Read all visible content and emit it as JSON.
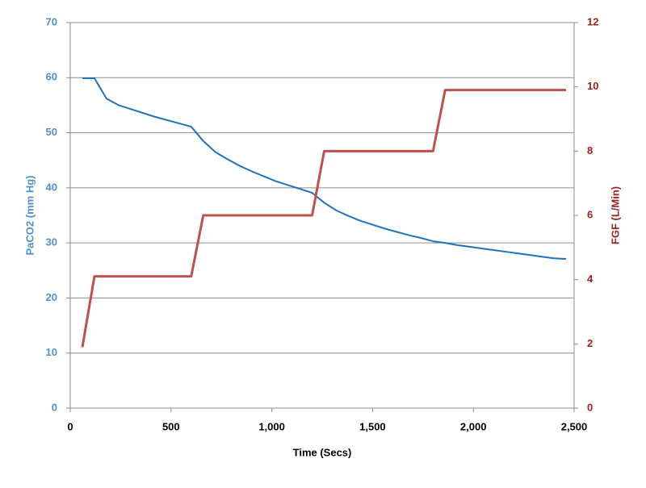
{
  "chart_data": {
    "type": "line",
    "x_label": "Time (Secs)",
    "y_label": "PaCO2 (mm Hg)",
    "y2_label": "FGF (L/Min)",
    "x": [
      60,
      120,
      180,
      240,
      300,
      360,
      420,
      480,
      540,
      600,
      660,
      720,
      780,
      840,
      900,
      960,
      1020,
      1080,
      1140,
      1200,
      1260,
      1320,
      1380,
      1440,
      1500,
      1560,
      1620,
      1680,
      1740,
      1800,
      1860,
      1920,
      1980,
      2040,
      2100,
      2160,
      2220,
      2280,
      2340,
      2400,
      2460
    ],
    "series": [
      {
        "name": "PaCO2",
        "color": "#1f72bd",
        "values": [
          59.9,
          59.9,
          56.2,
          55.0,
          54.3,
          53.6,
          52.9,
          52.3,
          51.7,
          51.1,
          48.5,
          46.5,
          45.2,
          44.0,
          43.0,
          42.1,
          41.2,
          40.5,
          39.8,
          39.1,
          37.3,
          35.9,
          34.9,
          34.0,
          33.3,
          32.6,
          32.0,
          31.4,
          30.9,
          30.3,
          30.0,
          29.6,
          29.3,
          29.0,
          28.7,
          28.4,
          28.1,
          27.8,
          27.5,
          27.2,
          27.1
        ]
      },
      {
        "name": "FGF",
        "color": "#c0504d",
        "axis": "y2",
        "values": [
          1.9,
          4.1,
          4.1,
          4.1,
          4.1,
          4.1,
          4.1,
          4.1,
          4.1,
          4.1,
          6.0,
          6.0,
          6.0,
          6.0,
          6.0,
          6.0,
          6.0,
          6.0,
          6.0,
          6.0,
          8.0,
          8.0,
          8.0,
          8.0,
          8.0,
          8.0,
          8.0,
          8.0,
          8.0,
          8.0,
          9.9,
          9.9,
          9.9,
          9.9,
          9.9,
          9.9,
          9.9,
          9.9,
          9.9,
          9.9,
          9.9
        ]
      }
    ],
    "xlim": [
      0,
      2500
    ],
    "xticks": [
      0,
      500,
      {
        "value": 1000,
        "label": "1,000"
      },
      {
        "value": 1500,
        "label": "1,500"
      },
      {
        "value": 2000,
        "label": "2,000"
      },
      {
        "value": 2500,
        "label": "2,500"
      }
    ],
    "ylim": [
      0,
      70
    ],
    "yticks": [
      0,
      10,
      20,
      30,
      40,
      50,
      60,
      70
    ],
    "y2lim": [
      0,
      12
    ],
    "y2ticks": [
      0,
      2,
      4,
      6,
      8,
      10,
      12
    ],
    "grid": true,
    "y_color": "#4f8fce",
    "y2_color": "#a02020"
  }
}
